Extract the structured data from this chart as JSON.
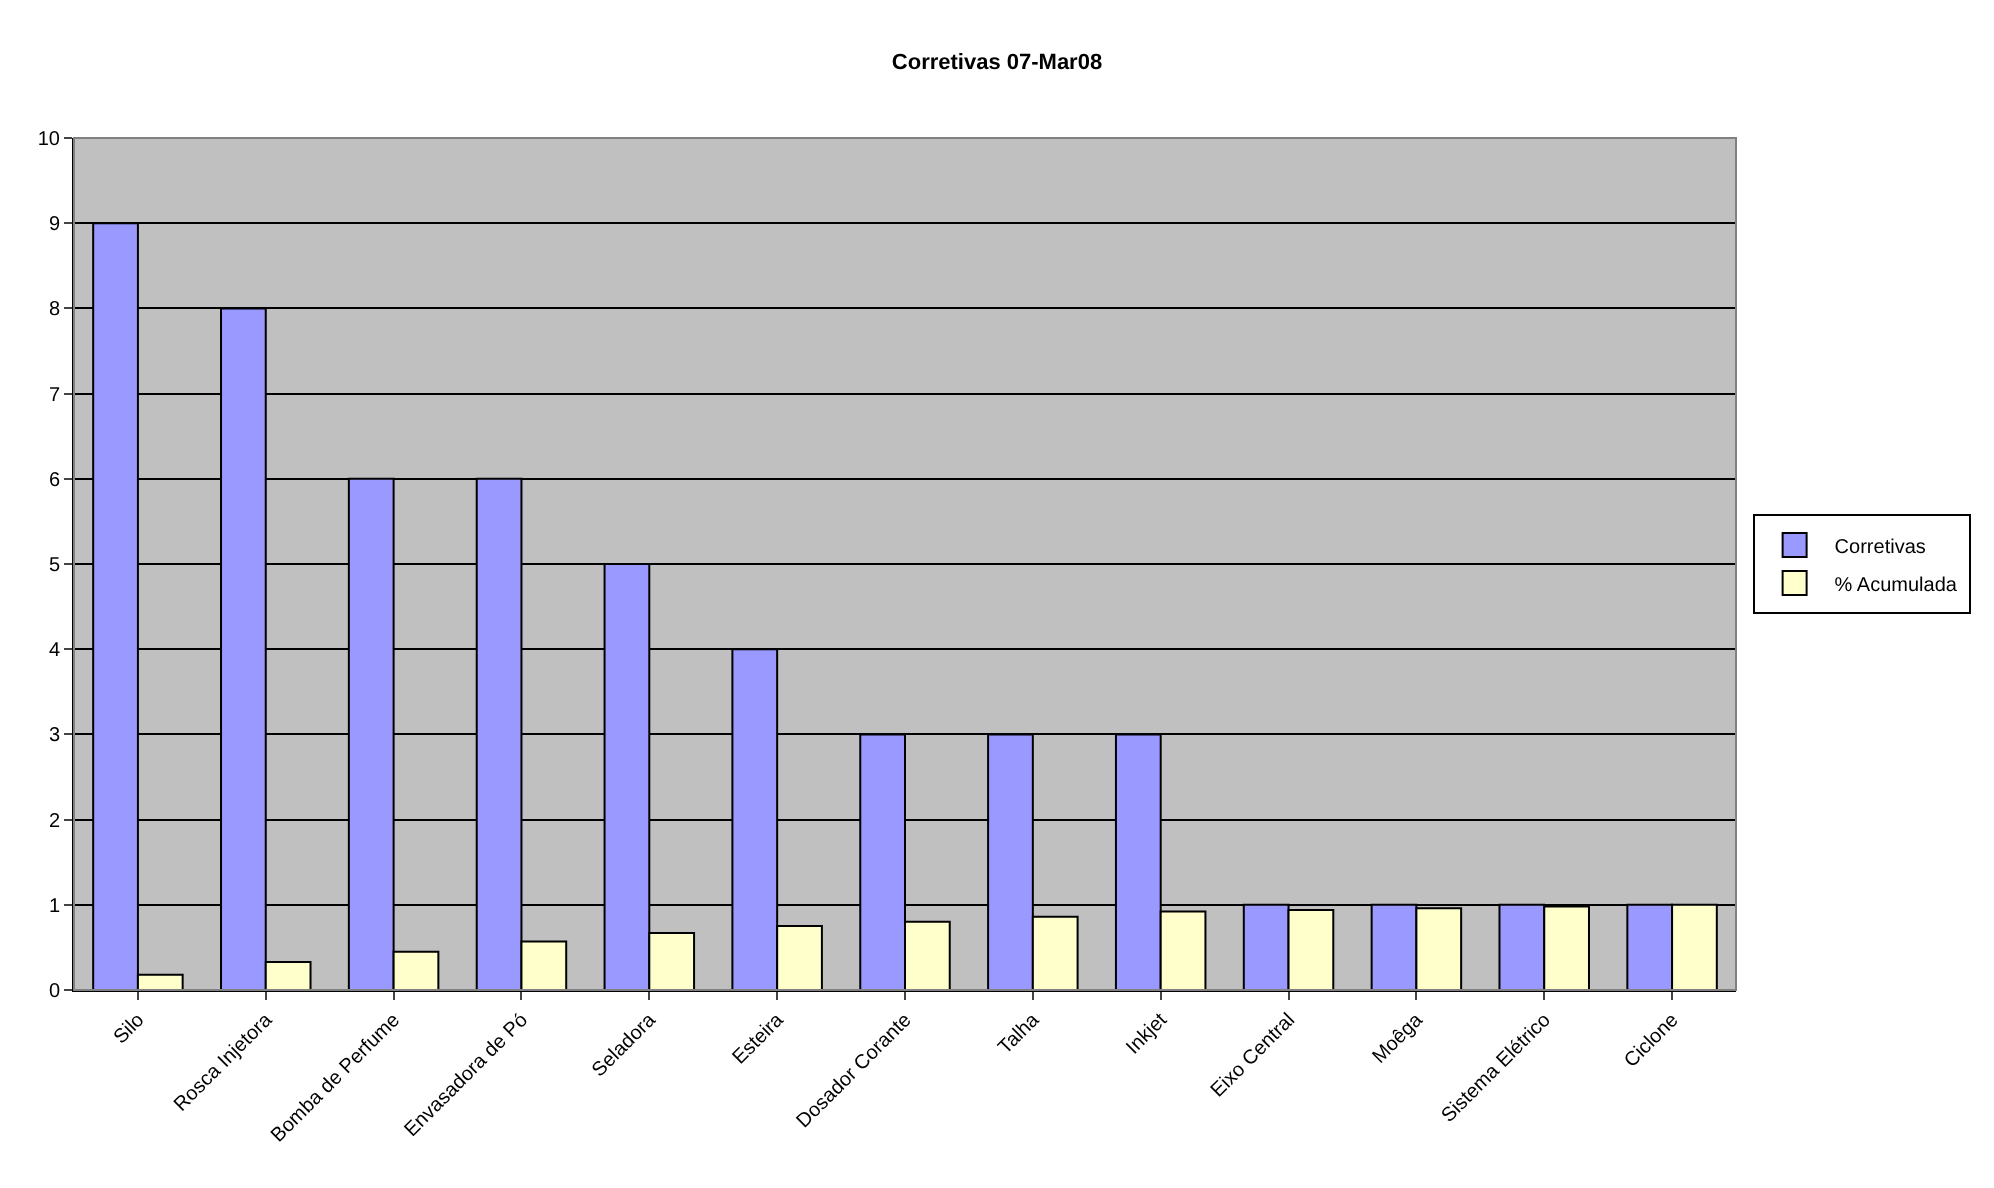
{
  "chart_data": {
    "type": "bar",
    "title": "Corretivas 07-Mar08",
    "categories": [
      "Silo",
      "Rosca Injetora",
      "Bomba de Perfume",
      "Envasadora de Pó",
      "Seladora",
      "Esteira",
      "Dosador Corante",
      "Talha",
      "Inkjet",
      "Eixo Central",
      "Moêga",
      "Sistema Elétrico",
      "Ciclone"
    ],
    "series": [
      {
        "name": "Corretivas",
        "color": "#9999ff",
        "values": [
          9,
          8,
          6,
          6,
          5,
          4,
          3,
          3,
          3,
          1,
          1,
          1,
          1
        ]
      },
      {
        "name": "% Acumulada",
        "color": "#ffffcc",
        "values": [
          0.18,
          0.33,
          0.45,
          0.57,
          0.67,
          0.75,
          0.8,
          0.86,
          0.92,
          0.94,
          0.96,
          0.98,
          1
        ]
      }
    ],
    "ylim": [
      0,
      10
    ],
    "yticks": [
      0,
      1,
      2,
      3,
      4,
      5,
      6,
      7,
      8,
      9,
      10
    ],
    "grid": "y",
    "legend": "right"
  }
}
